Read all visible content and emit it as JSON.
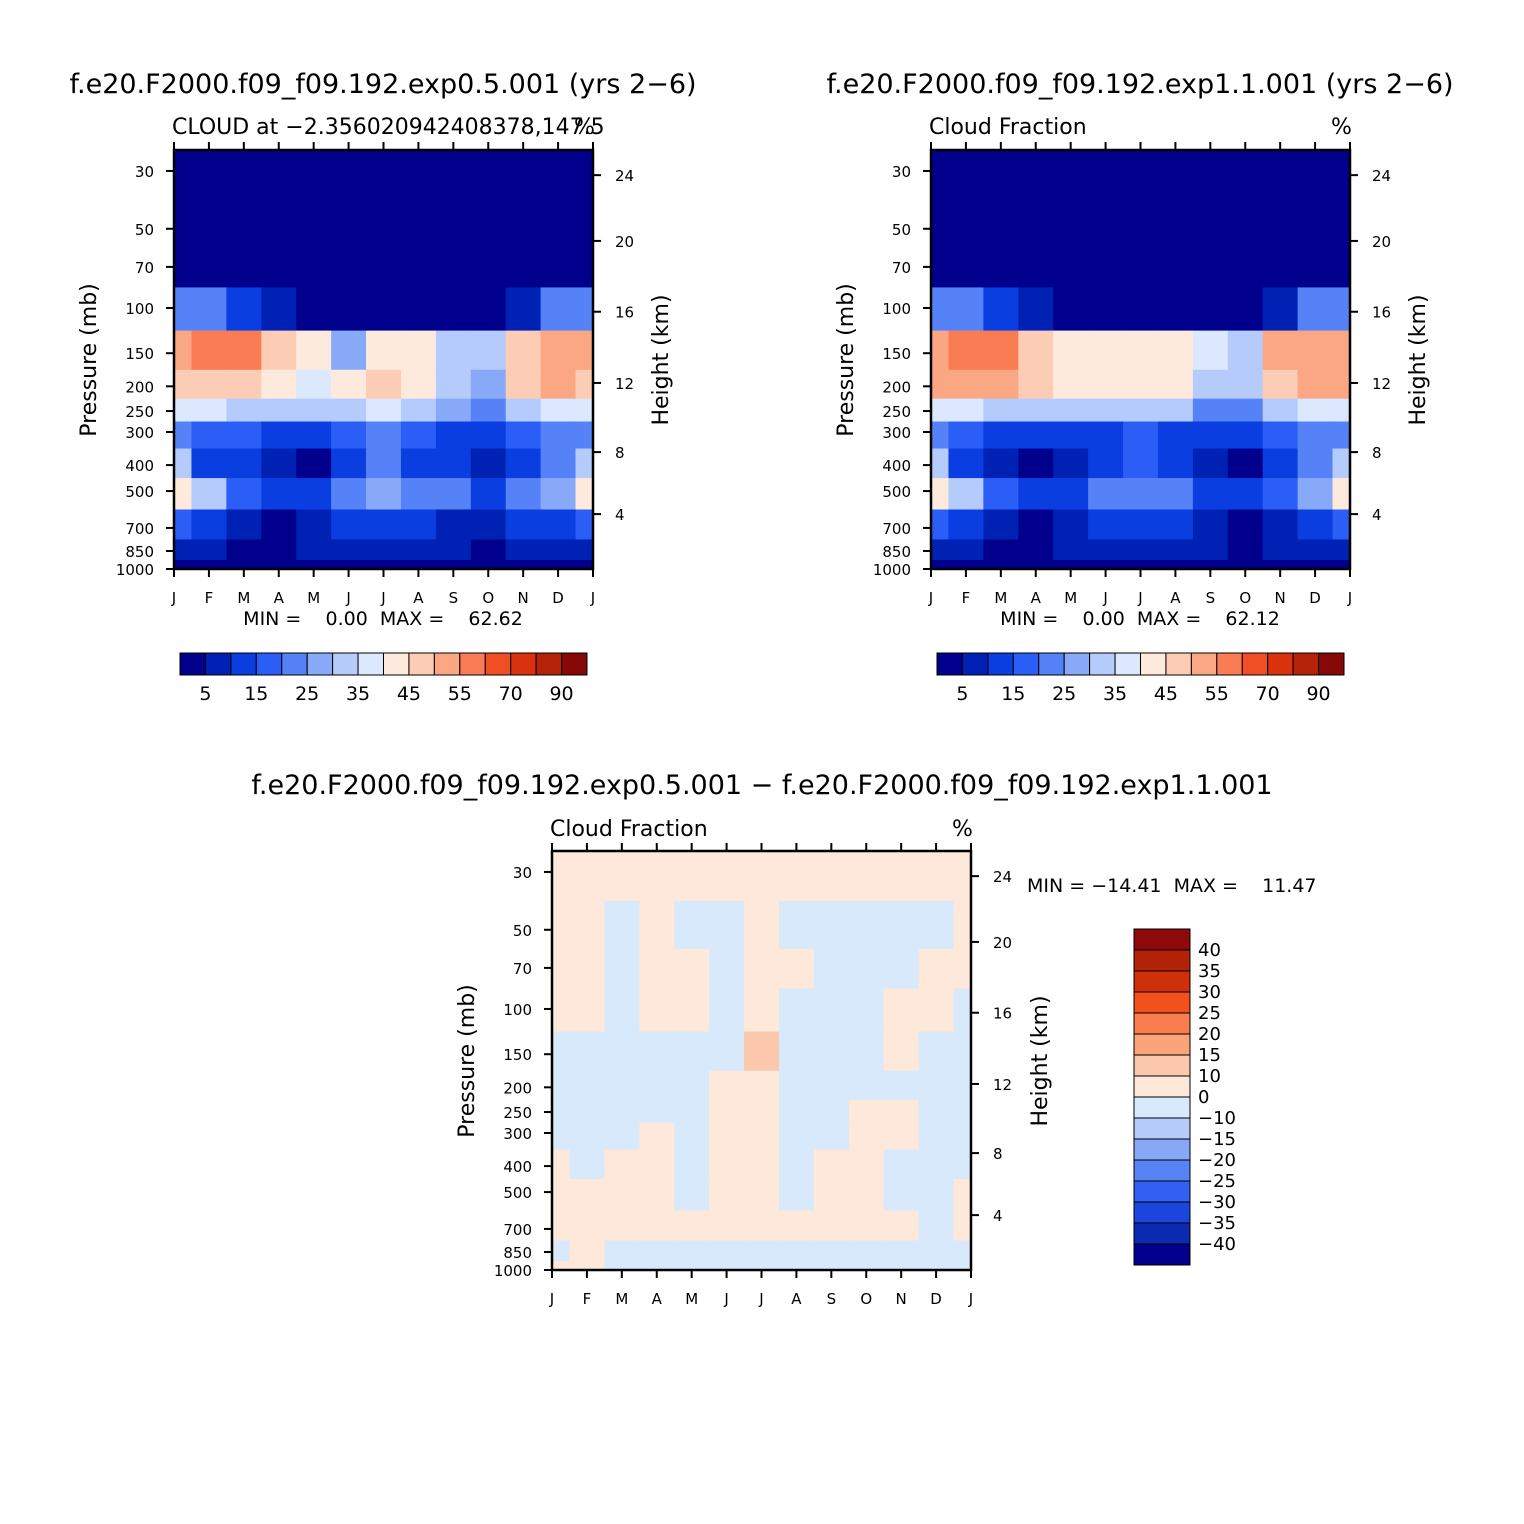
{
  "palette": {
    "abs": [
      "#00008c",
      "#0022b4",
      "#0b3ee0",
      "#2a5ef6",
      "#5682f7",
      "#88a9f8",
      "#b5cbfb",
      "#dbe8fd",
      "#feeadc",
      "#fdccb4",
      "#fca784",
      "#fa7c54",
      "#f04f26",
      "#d9320e",
      "#b52309",
      "#860807"
    ],
    "diff": [
      "#00008c",
      "#0a2ab2",
      "#1a46de",
      "#3160f2",
      "#5883f4",
      "#87a8f6",
      "#b5cbf9",
      "#d8e9fc",
      "#fde8d9",
      "#fcc8ac",
      "#faa47a",
      "#f97d4e",
      "#f4501e",
      "#cf3009",
      "#b22307",
      "#8e0a0a"
    ]
  },
  "months": [
    "J",
    "F",
    "M",
    "A",
    "M",
    "J",
    "J",
    "A",
    "S",
    "O",
    "N",
    "D",
    "J"
  ],
  "pressure_ticks": [
    "30",
    "50",
    "70",
    "100",
    "150",
    "200",
    "250",
    "300",
    "400",
    "500",
    "700",
    "850",
    "1000"
  ],
  "height_ticks": [
    "24",
    "20",
    "16",
    "12",
    "8",
    "4"
  ],
  "panels": [
    {
      "case_title": "f.e20.F2000.f09_f09.192.exp0.5.001 (yrs 2−6)",
      "left_label": "CLOUD at −2.356020942408378,147.5",
      "units": "%",
      "y_label": "Pressure (mb)",
      "y2_label": "Height (km)",
      "minmax": "MIN =    0.00  MAX =    62.62",
      "colorbar_labels": [
        "5",
        "15",
        "25",
        "35",
        "45",
        "55",
        "70",
        "90"
      ],
      "min": 0.0,
      "max": 62.62
    },
    {
      "case_title": "f.e20.F2000.f09_f09.192.exp1.1.001 (yrs 2−6)",
      "left_label": "Cloud Fraction",
      "units": "%",
      "y_label": "Pressure (mb)",
      "y2_label": "Height (km)",
      "minmax": "MIN =    0.00  MAX =    62.12",
      "colorbar_labels": [
        "5",
        "15",
        "25",
        "35",
        "45",
        "55",
        "70",
        "90"
      ],
      "min": 0.0,
      "max": 62.12
    },
    {
      "case_title": "f.e20.F2000.f09_f09.192.exp0.5.001 − f.e20.F2000.f09_f09.192.exp1.1.001",
      "left_label": "Cloud Fraction",
      "units": "%",
      "y_label": "Pressure (mb)",
      "y2_label": "Height (km)",
      "minmax": "MIN = −14.41  MAX =    11.47",
      "colorbar_labels": [
        "40",
        "35",
        "30",
        "25",
        "20",
        "15",
        "10",
        "0",
        "−10",
        "−15",
        "−20",
        "−25",
        "−30",
        "−35",
        "−40"
      ],
      "min": -14.41,
      "max": 11.47
    }
  ],
  "chart_data": [
    {
      "type": "heatmap",
      "title": "f.e20.F2000.f09_f09.192.exp0.5.001 (yrs 2−6)",
      "subtitle": "CLOUD at −2.356020942408378,147.5",
      "xlabel": "",
      "ylabel": "Pressure (mb)",
      "y2label": "Height (km)",
      "x": [
        "J",
        "F",
        "M",
        "A",
        "M",
        "J",
        "J",
        "A",
        "S",
        "O",
        "N",
        "D",
        "J"
      ],
      "y": [
        30,
        50,
        70,
        100,
        150,
        200,
        250,
        300,
        400,
        500,
        700,
        850,
        1000
      ],
      "levels": [
        5,
        10,
        15,
        20,
        25,
        30,
        35,
        40,
        45,
        50,
        55,
        60,
        70,
        80,
        90
      ],
      "level_labels": [
        "5",
        "15",
        "25",
        "35",
        "45",
        "55",
        "70",
        "90"
      ],
      "min": 0.0,
      "max": 62.62,
      "z": [
        [
          0,
          0,
          0,
          0,
          0,
          0,
          0,
          0,
          0,
          0,
          0,
          0,
          0
        ],
        [
          0,
          0,
          0,
          0,
          0,
          0,
          0,
          0,
          0,
          0,
          0,
          0,
          0
        ],
        [
          0,
          0,
          0,
          0,
          0,
          0,
          0,
          0,
          0,
          0,
          0,
          0,
          0
        ],
        [
          22,
          20,
          14,
          6,
          2,
          0,
          2,
          4,
          2,
          2,
          6,
          20,
          22
        ],
        [
          50,
          56,
          55,
          47,
          40,
          25,
          42,
          44,
          32,
          30,
          46,
          52,
          50
        ],
        [
          47,
          48,
          48,
          44,
          38,
          40,
          46,
          44,
          30,
          28,
          46,
          50,
          47
        ],
        [
          38,
          38,
          34,
          30,
          30,
          33,
          37,
          33,
          28,
          22,
          30,
          38,
          38
        ],
        [
          24,
          18,
          16,
          14,
          12,
          16,
          20,
          16,
          14,
          12,
          18,
          22,
          24
        ],
        [
          30,
          14,
          10,
          6,
          4,
          12,
          20,
          14,
          10,
          6,
          12,
          20,
          30
        ],
        [
          44,
          30,
          16,
          10,
          12,
          22,
          26,
          24,
          20,
          14,
          20,
          28,
          44
        ],
        [
          16,
          10,
          6,
          4,
          6,
          10,
          12,
          10,
          8,
          6,
          10,
          14,
          16
        ],
        [
          8,
          6,
          4,
          4,
          6,
          8,
          8,
          8,
          6,
          4,
          6,
          8,
          8
        ],
        [
          4,
          4,
          4,
          4,
          4,
          4,
          4,
          4,
          4,
          4,
          4,
          4,
          4
        ]
      ]
    },
    {
      "type": "heatmap",
      "title": "f.e20.F2000.f09_f09.192.exp1.1.001 (yrs 2−6)",
      "subtitle": "Cloud Fraction",
      "xlabel": "",
      "ylabel": "Pressure (mb)",
      "y2label": "Height (km)",
      "x": [
        "J",
        "F",
        "M",
        "A",
        "M",
        "J",
        "J",
        "A",
        "S",
        "O",
        "N",
        "D",
        "J"
      ],
      "y": [
        30,
        50,
        70,
        100,
        150,
        200,
        250,
        300,
        400,
        500,
        700,
        850,
        1000
      ],
      "levels": [
        5,
        10,
        15,
        20,
        25,
        30,
        35,
        40,
        45,
        50,
        55,
        60,
        70,
        80,
        90
      ],
      "level_labels": [
        "5",
        "15",
        "25",
        "35",
        "45",
        "55",
        "70",
        "90"
      ],
      "min": 0.0,
      "max": 62.12,
      "z": [
        [
          0,
          0,
          0,
          0,
          0,
          0,
          0,
          0,
          0,
          0,
          0,
          0,
          0
        ],
        [
          0,
          0,
          0,
          0,
          0,
          0,
          0,
          0,
          0,
          0,
          0,
          0,
          0
        ],
        [
          0,
          0,
          0,
          0,
          0,
          0,
          0,
          0,
          0,
          0,
          0,
          0,
          0
        ],
        [
          22,
          20,
          14,
          6,
          2,
          0,
          2,
          4,
          2,
          2,
          6,
          20,
          22
        ],
        [
          54,
          56,
          55,
          48,
          42,
          42,
          42,
          42,
          36,
          34,
          50,
          54,
          54
        ],
        [
          50,
          52,
          50,
          46,
          44,
          44,
          44,
          42,
          32,
          30,
          48,
          52,
          50
        ],
        [
          38,
          38,
          34,
          30,
          30,
          32,
          34,
          30,
          24,
          22,
          32,
          38,
          38
        ],
        [
          24,
          18,
          14,
          12,
          12,
          14,
          16,
          14,
          12,
          12,
          18,
          22,
          24
        ],
        [
          30,
          14,
          8,
          4,
          8,
          12,
          18,
          14,
          8,
          4,
          10,
          20,
          30
        ],
        [
          42,
          30,
          16,
          10,
          14,
          20,
          22,
          20,
          14,
          12,
          16,
          28,
          42
        ],
        [
          16,
          10,
          6,
          4,
          6,
          10,
          10,
          10,
          6,
          4,
          8,
          14,
          16
        ],
        [
          8,
          6,
          4,
          4,
          6,
          8,
          8,
          8,
          6,
          4,
          6,
          8,
          8
        ],
        [
          4,
          4,
          4,
          4,
          4,
          4,
          4,
          4,
          4,
          4,
          4,
          4,
          4
        ]
      ]
    },
    {
      "type": "heatmap",
      "title": "f.e20.F2000.f09_f09.192.exp0.5.001 − f.e20.F2000.f09_f09.192.exp1.1.001",
      "subtitle": "Cloud Fraction",
      "xlabel": "",
      "ylabel": "Pressure (mb)",
      "y2label": "Height (km)",
      "x": [
        "J",
        "F",
        "M",
        "A",
        "M",
        "J",
        "J",
        "A",
        "S",
        "O",
        "N",
        "D",
        "J"
      ],
      "y": [
        30,
        50,
        70,
        100,
        150,
        200,
        250,
        300,
        400,
        500,
        700,
        850,
        1000
      ],
      "levels": [
        -40,
        -35,
        -30,
        -25,
        -20,
        -15,
        -10,
        0,
        10,
        15,
        20,
        25,
        30,
        35,
        40
      ],
      "level_labels": [
        "40",
        "35",
        "30",
        "25",
        "20",
        "15",
        "10",
        "0",
        "−10",
        "−15",
        "−20",
        "−25",
        "−30",
        "−35",
        "−40"
      ],
      "min": -14.41,
      "max": 11.47,
      "z": [
        [
          0.5,
          0.5,
          0.5,
          0.5,
          0.5,
          0.5,
          0.5,
          0.5,
          0.5,
          0.5,
          0.5,
          0.5,
          0.5
        ],
        [
          0.5,
          0.5,
          -0.4,
          0.5,
          -0.4,
          -0.4,
          0.5,
          -0.4,
          -0.4,
          -0.4,
          -0.4,
          -0.4,
          0.5
        ],
        [
          0.5,
          0.5,
          -0.5,
          0.5,
          0.5,
          -0.4,
          0.5,
          0.5,
          -0.4,
          -0.4,
          -0.4,
          0.5,
          0.5
        ],
        [
          0.5,
          0.5,
          -0.5,
          0.5,
          0.5,
          -0.4,
          0.5,
          -0.4,
          -0.4,
          -0.4,
          0.5,
          0.5,
          -0.4
        ],
        [
          -0.5,
          -0.4,
          -0.4,
          -0.5,
          -0.4,
          -1.5,
          12,
          -0.4,
          -0.4,
          -0.4,
          0.5,
          -0.4,
          -0.4
        ],
        [
          -0.5,
          -0.4,
          -0.5,
          -0.4,
          -2,
          0.5,
          0.5,
          -0.4,
          -0.4,
          -0.4,
          -0.4,
          -0.4,
          -0.4
        ],
        [
          -0.5,
          -0.4,
          -0.4,
          -0.4,
          -0.4,
          0.5,
          0.5,
          -0.4,
          -0.4,
          0.5,
          0.5,
          -0.4,
          -0.4
        ],
        [
          -0.5,
          -0.4,
          -0.4,
          0.5,
          -0.4,
          0.5,
          0.5,
          -0.4,
          -0.4,
          0.5,
          0.5,
          -0.4,
          -0.4
        ],
        [
          0.5,
          -0.4,
          0.5,
          0.5,
          -0.4,
          0.5,
          0.5,
          -0.4,
          0.5,
          0.5,
          -0.4,
          -0.4,
          -0.4
        ],
        [
          0.5,
          0.5,
          0.5,
          0.5,
          -0.4,
          0.5,
          0.5,
          -0.4,
          0.5,
          0.5,
          -0.4,
          -1.5,
          0.5
        ],
        [
          0.5,
          0.5,
          0.5,
          0.5,
          0.5,
          0.5,
          0.5,
          0.5,
          0.5,
          0.5,
          0.5,
          -0.4,
          0.5
        ],
        [
          -0.4,
          0.5,
          -0.4,
          -0.4,
          -0.4,
          -0.4,
          -0.4,
          -0.4,
          -0.4,
          -0.4,
          -0.4,
          -0.4,
          -0.4
        ],
        [
          0.5,
          0.5,
          -0.4,
          -0.4,
          -0.4,
          -0.4,
          -0.4,
          -0.4,
          -0.4,
          -0.4,
          -0.4,
          -0.4,
          -0.4
        ]
      ]
    }
  ]
}
